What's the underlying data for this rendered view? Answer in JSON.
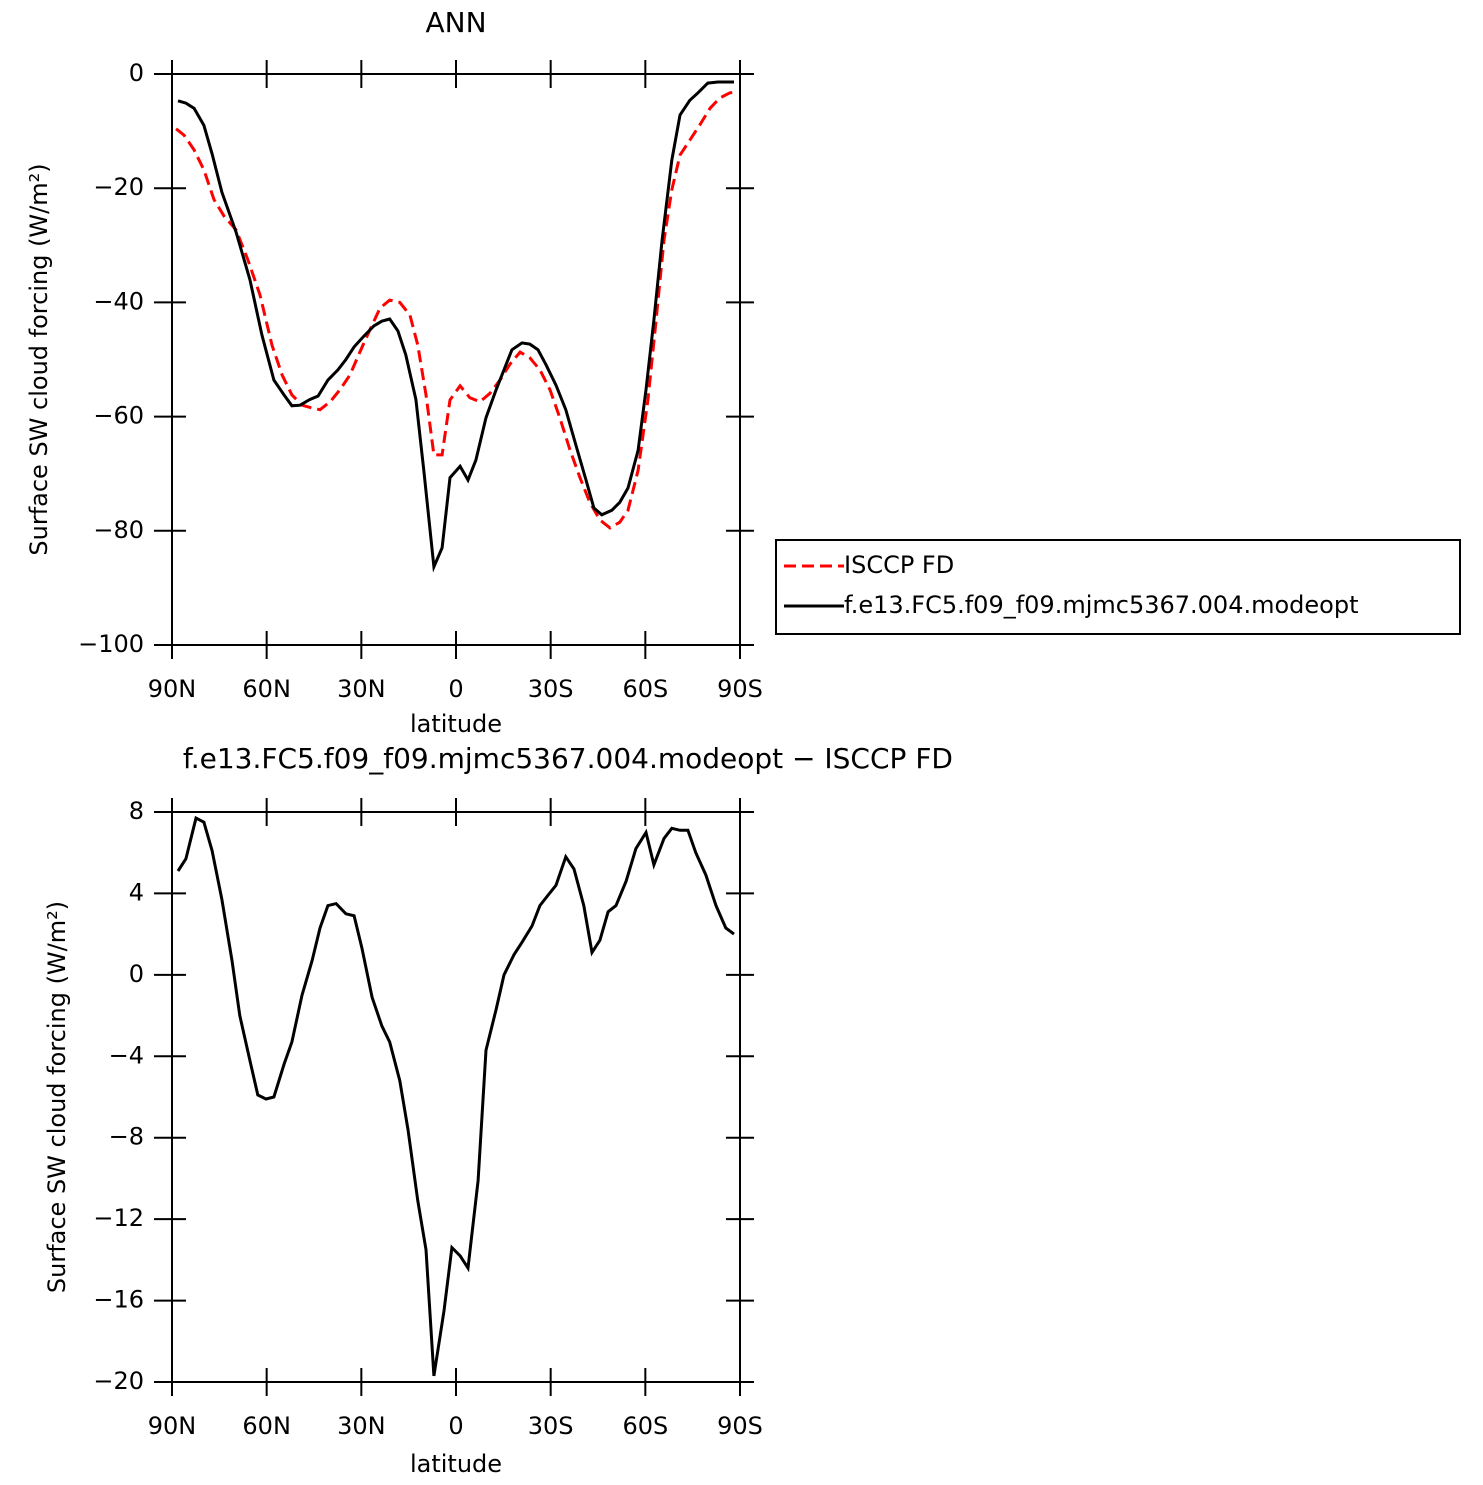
{
  "chart_data": [
    {
      "type": "line",
      "title": "ANN",
      "xlabel": "latitude",
      "ylabel": "Surface SW cloud forcing (W/m²)",
      "xlim": [
        90,
        -90
      ],
      "xticks": [
        {
          "value": 90,
          "label": "90N"
        },
        {
          "value": 60,
          "label": "60N"
        },
        {
          "value": 30,
          "label": "30N"
        },
        0,
        {
          "value": -30,
          "label": "30S"
        },
        {
          "value": -60,
          "label": "60S"
        },
        {
          "value": -90,
          "label": "90S"
        }
      ],
      "ylim": [
        -100,
        0
      ],
      "yticks": [
        {
          "value": -100,
          "label": "−100"
        },
        {
          "value": -80,
          "label": "−80"
        },
        {
          "value": -60,
          "label": "−60"
        },
        {
          "value": -40,
          "label": "−40"
        },
        {
          "value": -20,
          "label": "−20"
        },
        0
      ],
      "legend_position": "right",
      "series": [
        {
          "name": "ISCCP FD",
          "color": "#ff0000",
          "dash": "dashed",
          "x": [
            88.7,
            86.2,
            83,
            79.9,
            76.7,
            73.5,
            69.7,
            65.9,
            62.1,
            58.3,
            55.1,
            52,
            48.8,
            45.6,
            43.1,
            39.9,
            36.8,
            33.6,
            30.4,
            27.3,
            24.1,
            21,
            17.8,
            14.6,
            12.1,
            9.5,
            7,
            4.4,
            1.9,
            -1.3,
            -4.4,
            -7.6,
            -10.8,
            -13.9,
            -17.1,
            -20.3,
            -23.4,
            -26.6,
            -29.8,
            -32.9,
            -36.1,
            -39.3,
            -42.4,
            -45.6,
            -48.8,
            -51.9,
            -54.5,
            -57.7,
            -60.8,
            -63.4,
            -65.9,
            -68.4,
            -71,
            -74.1,
            -77.3,
            -80.5,
            -83.6,
            -86.8,
            -88.7
          ],
          "values": [
            -9.6,
            -10.7,
            -13.3,
            -16.8,
            -22,
            -24.9,
            -27.3,
            -32.6,
            -38.7,
            -47.5,
            -52.7,
            -56.2,
            -58,
            -58.5,
            -58.8,
            -57.4,
            -55.3,
            -52.7,
            -48.6,
            -44.8,
            -41,
            -39.6,
            -40,
            -42.2,
            -47.5,
            -56.2,
            -66.7,
            -66.7,
            -57.1,
            -54.6,
            -56.7,
            -57.4,
            -55.9,
            -53.6,
            -50.8,
            -48.7,
            -49.7,
            -51.8,
            -55.3,
            -60.2,
            -65.8,
            -70.7,
            -75,
            -78.1,
            -79.5,
            -78.5,
            -76.4,
            -69.4,
            -57.1,
            -43.1,
            -29.1,
            -20.3,
            -14.2,
            -11.6,
            -8.9,
            -6,
            -4.2,
            -3.3,
            -3.2
          ]
        },
        {
          "name": "f.e13.FC5.f09_f09.mjmc5367.004.modeopt",
          "color": "#000000",
          "dash": "solid",
          "x": [
            88.1,
            85.6,
            83,
            79.9,
            77.3,
            74.2,
            69.7,
            65.3,
            61.5,
            57.7,
            54.5,
            52,
            49.4,
            46.3,
            43.7,
            40.6,
            37.4,
            34.9,
            32.3,
            29.2,
            26,
            23.5,
            21,
            18.4,
            15.9,
            12.7,
            10.2,
            7,
            4.4,
            1.9,
            -1.3,
            -3.8,
            -6.3,
            -9.5,
            -12.7,
            -15.2,
            -17.7,
            -20.9,
            -23.4,
            -26,
            -28.5,
            -31.7,
            -34.8,
            -38,
            -41.2,
            -43.7,
            -46.2,
            -49.4,
            -51.9,
            -54.5,
            -57.7,
            -60.2,
            -62.7,
            -65.3,
            -68.4,
            -71,
            -74.1,
            -76.7,
            -79.8,
            -83,
            -88.1
          ],
          "values": [
            -4.7,
            -5.1,
            -6,
            -9,
            -14,
            -20.7,
            -27.7,
            -36,
            -45.7,
            -53.6,
            -56.2,
            -58.1,
            -58,
            -57,
            -56.4,
            -53.6,
            -51.8,
            -50,
            -47.8,
            -45.9,
            -44.1,
            -43.3,
            -42.9,
            -45,
            -49.2,
            -57,
            -69.4,
            -86.3,
            -83,
            -70.7,
            -68.7,
            -71.1,
            -67.6,
            -60.2,
            -55.3,
            -51.8,
            -48.3,
            -47.1,
            -47.3,
            -48.3,
            -50.9,
            -54.5,
            -58.8,
            -65,
            -71.1,
            -76,
            -77.2,
            -76.4,
            -75,
            -72.5,
            -65.9,
            -55.3,
            -43.1,
            -29.1,
            -15.1,
            -7.2,
            -4.6,
            -3.3,
            -1.6,
            -1.4,
            -1.4
          ]
        }
      ]
    },
    {
      "type": "line",
      "title": "f.e13.FC5.f09_f09.mjmc5367.004.modeopt − ISCCP FD",
      "xlabel": "latitude",
      "ylabel": "Surface SW cloud forcing (W/m²)",
      "xlim": [
        90,
        -90
      ],
      "xticks": [
        {
          "value": 90,
          "label": "90N"
        },
        {
          "value": 60,
          "label": "60N"
        },
        {
          "value": 30,
          "label": "30N"
        },
        0,
        {
          "value": -30,
          "label": "30S"
        },
        {
          "value": -60,
          "label": "60S"
        },
        {
          "value": -90,
          "label": "90S"
        }
      ],
      "ylim": [
        -20,
        8
      ],
      "yticks": [
        {
          "value": -20,
          "label": "−20"
        },
        {
          "value": -16,
          "label": "−16"
        },
        {
          "value": -12,
          "label": "−12"
        },
        {
          "value": -8,
          "label": "−8"
        },
        {
          "value": -4,
          "label": "−4"
        },
        0,
        4,
        8
      ],
      "series": [
        {
          "color": "#000000",
          "dash": "solid",
          "x": [
            88.1,
            85.6,
            82.4,
            79.9,
            77.3,
            74.2,
            71,
            68.5,
            65.3,
            62.8,
            60.2,
            57.7,
            54.5,
            52,
            48.8,
            45.6,
            43.1,
            40.6,
            38,
            34.9,
            32.3,
            29.8,
            26.6,
            23.5,
            21,
            17.8,
            15.2,
            12.1,
            9.5,
            7,
            3.8,
            1.3,
            -1.3,
            -3.8,
            -7,
            -9.5,
            -12.7,
            -15.2,
            -18.4,
            -20.9,
            -24.1,
            -26.6,
            -29.1,
            -31.7,
            -34.8,
            -37.4,
            -40.5,
            -43.1,
            -45.6,
            -48.2,
            -50.7,
            -53.9,
            -57,
            -60.2,
            -62.7,
            -65.9,
            -68.4,
            -71,
            -73.5,
            -76,
            -79.2,
            -82.4,
            -85.5,
            -88.1
          ],
          "values": [
            5.1,
            5.7,
            7.7,
            7.5,
            6.1,
            3.7,
            0.7,
            -2,
            -4.2,
            -5.9,
            -6.1,
            -6,
            -4.4,
            -3.3,
            -1,
            0.7,
            2.3,
            3.4,
            3.5,
            3,
            2.9,
            1.3,
            -1.1,
            -2.5,
            -3.3,
            -5.2,
            -7.6,
            -11.1,
            -13.5,
            -19.7,
            -16.5,
            -13.4,
            -13.8,
            -14.4,
            -10.1,
            -3.7,
            -1.7,
            0,
            1,
            1.6,
            2.4,
            3.4,
            3.9,
            4.4,
            5.8,
            5.2,
            3.4,
            1.1,
            1.7,
            3.1,
            3.4,
            4.6,
            6.2,
            7,
            5.4,
            6.7,
            7.2,
            7.1,
            7.1,
            6,
            4.9,
            3.4,
            2.3,
            2
          ]
        }
      ]
    }
  ]
}
